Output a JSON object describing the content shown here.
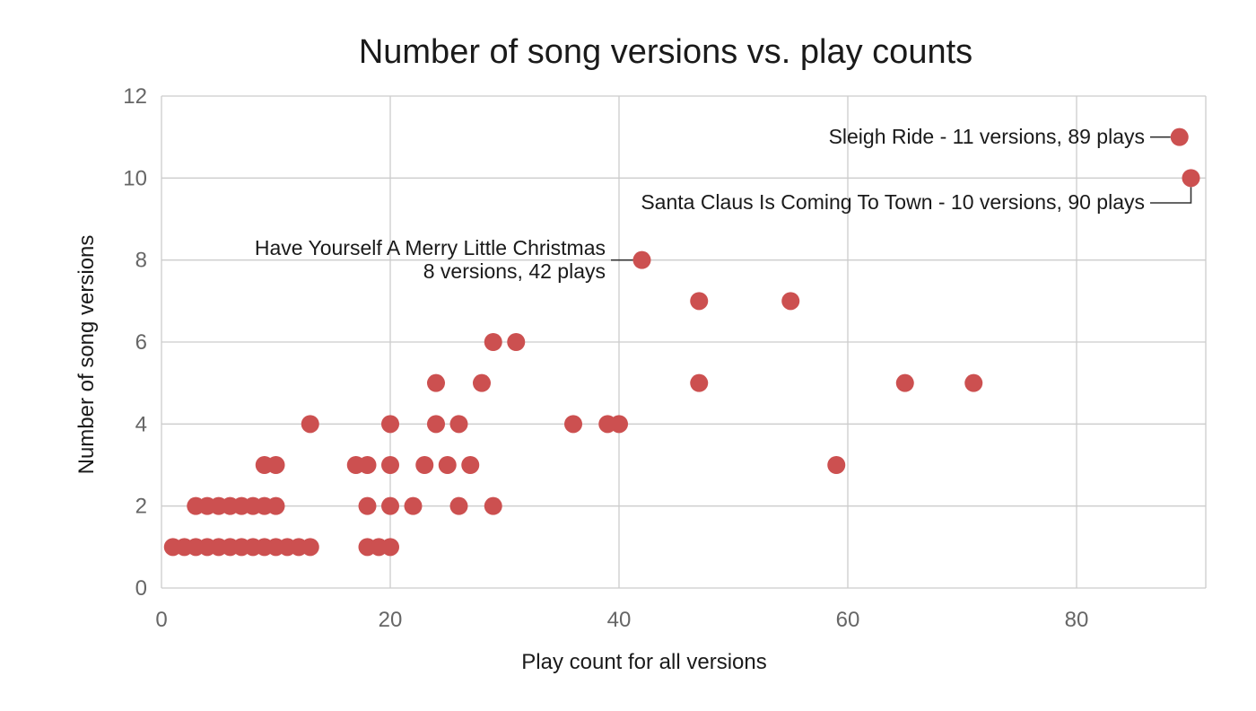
{
  "chart_data": {
    "type": "scatter",
    "title": "Number of song versions vs. play counts",
    "xlabel": "Play count for all versions",
    "ylabel": "Number of song versions",
    "xlim": [
      0,
      90
    ],
    "ylim": [
      0,
      12
    ],
    "x_ticks": [
      0,
      20,
      40,
      60,
      80
    ],
    "y_ticks": [
      0,
      2,
      4,
      6,
      8,
      10,
      12
    ],
    "grid": true,
    "point_color": "#cc5050",
    "points": [
      {
        "x": 1,
        "y": 1
      },
      {
        "x": 2,
        "y": 1
      },
      {
        "x": 3,
        "y": 1
      },
      {
        "x": 4,
        "y": 1
      },
      {
        "x": 5,
        "y": 1
      },
      {
        "x": 6,
        "y": 1
      },
      {
        "x": 7,
        "y": 1
      },
      {
        "x": 8,
        "y": 1
      },
      {
        "x": 9,
        "y": 1
      },
      {
        "x": 10,
        "y": 1
      },
      {
        "x": 11,
        "y": 1
      },
      {
        "x": 12,
        "y": 1
      },
      {
        "x": 13,
        "y": 1
      },
      {
        "x": 18,
        "y": 1
      },
      {
        "x": 19,
        "y": 1
      },
      {
        "x": 20,
        "y": 1
      },
      {
        "x": 3,
        "y": 2
      },
      {
        "x": 4,
        "y": 2
      },
      {
        "x": 5,
        "y": 2
      },
      {
        "x": 6,
        "y": 2
      },
      {
        "x": 7,
        "y": 2
      },
      {
        "x": 8,
        "y": 2
      },
      {
        "x": 9,
        "y": 2
      },
      {
        "x": 10,
        "y": 2
      },
      {
        "x": 18,
        "y": 2
      },
      {
        "x": 20,
        "y": 2
      },
      {
        "x": 22,
        "y": 2
      },
      {
        "x": 26,
        "y": 2
      },
      {
        "x": 29,
        "y": 2
      },
      {
        "x": 9,
        "y": 3
      },
      {
        "x": 10,
        "y": 3
      },
      {
        "x": 17,
        "y": 3
      },
      {
        "x": 18,
        "y": 3
      },
      {
        "x": 20,
        "y": 3
      },
      {
        "x": 23,
        "y": 3
      },
      {
        "x": 25,
        "y": 3
      },
      {
        "x": 27,
        "y": 3
      },
      {
        "x": 59,
        "y": 3
      },
      {
        "x": 13,
        "y": 4
      },
      {
        "x": 20,
        "y": 4
      },
      {
        "x": 24,
        "y": 4
      },
      {
        "x": 26,
        "y": 4
      },
      {
        "x": 36,
        "y": 4
      },
      {
        "x": 39,
        "y": 4
      },
      {
        "x": 40,
        "y": 4
      },
      {
        "x": 24,
        "y": 5
      },
      {
        "x": 28,
        "y": 5
      },
      {
        "x": 47,
        "y": 5
      },
      {
        "x": 65,
        "y": 5
      },
      {
        "x": 71,
        "y": 5
      },
      {
        "x": 29,
        "y": 6
      },
      {
        "x": 31,
        "y": 6
      },
      {
        "x": 47,
        "y": 7
      },
      {
        "x": 55,
        "y": 7
      },
      {
        "x": 42,
        "y": 8
      },
      {
        "x": 90,
        "y": 10
      },
      {
        "x": 89,
        "y": 11
      }
    ],
    "annotations": [
      {
        "x": 89,
        "y": 11,
        "lines": [
          "Sleigh Ride - 11 versions,  89 plays"
        ]
      },
      {
        "x": 90,
        "y": 10,
        "lines": [
          "Santa Claus Is Coming To Town - 10 versions, 90 plays"
        ]
      },
      {
        "x": 42,
        "y": 8,
        "lines": [
          "Have Yourself A Merry Little Christmas",
          "8 versions, 42 plays"
        ]
      }
    ]
  }
}
